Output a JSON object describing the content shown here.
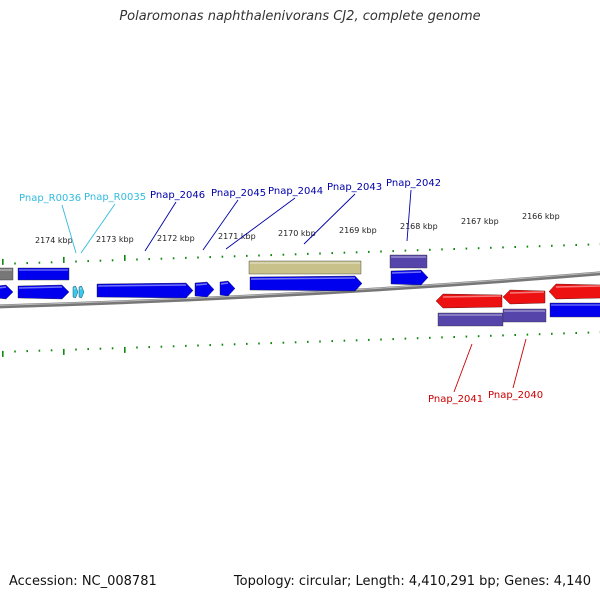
{
  "title": "Polaromonas naphthalenivorans CJ2, complete genome",
  "footer": {
    "accession": "Accession: NC_008781",
    "summary": "Topology: circular; Length: 4,410,291 bp; Genes: 4,140"
  },
  "colors": {
    "cds": "#0000ee",
    "trna": "#33ccee",
    "other_feature": "#c8c28a",
    "pseudo": "#5544aa",
    "reverse_cds": "#ee1111",
    "label_forward": "#0000aa",
    "label_trna": "#33bbdd",
    "label_reverse": "#cc0000",
    "backbone": "#888888",
    "ticks": "#118811"
  },
  "scale": {
    "unit": "kbp",
    "labels": [
      "2174 kbp",
      "2173 kbp",
      "2172 kbp",
      "2171 kbp",
      "2170 kbp",
      "2169 kbp",
      "2168 kbp",
      "2167 kbp",
      "2166 kbp"
    ]
  },
  "genes": [
    {
      "name": "Pnap_R0036",
      "type": "trna",
      "strand": "forward"
    },
    {
      "name": "Pnap_R0035",
      "type": "trna",
      "strand": "forward"
    },
    {
      "name": "Pnap_2046",
      "type": "cds",
      "strand": "forward"
    },
    {
      "name": "Pnap_2045",
      "type": "cds",
      "strand": "forward"
    },
    {
      "name": "Pnap_2044",
      "type": "cds",
      "strand": "forward"
    },
    {
      "name": "Pnap_2043",
      "type": "cds",
      "strand": "forward"
    },
    {
      "name": "Pnap_2042",
      "type": "cds",
      "strand": "forward"
    },
    {
      "name": "Pnap_2041",
      "type": "cds",
      "strand": "reverse"
    },
    {
      "name": "Pnap_2040",
      "type": "cds",
      "strand": "reverse"
    }
  ]
}
